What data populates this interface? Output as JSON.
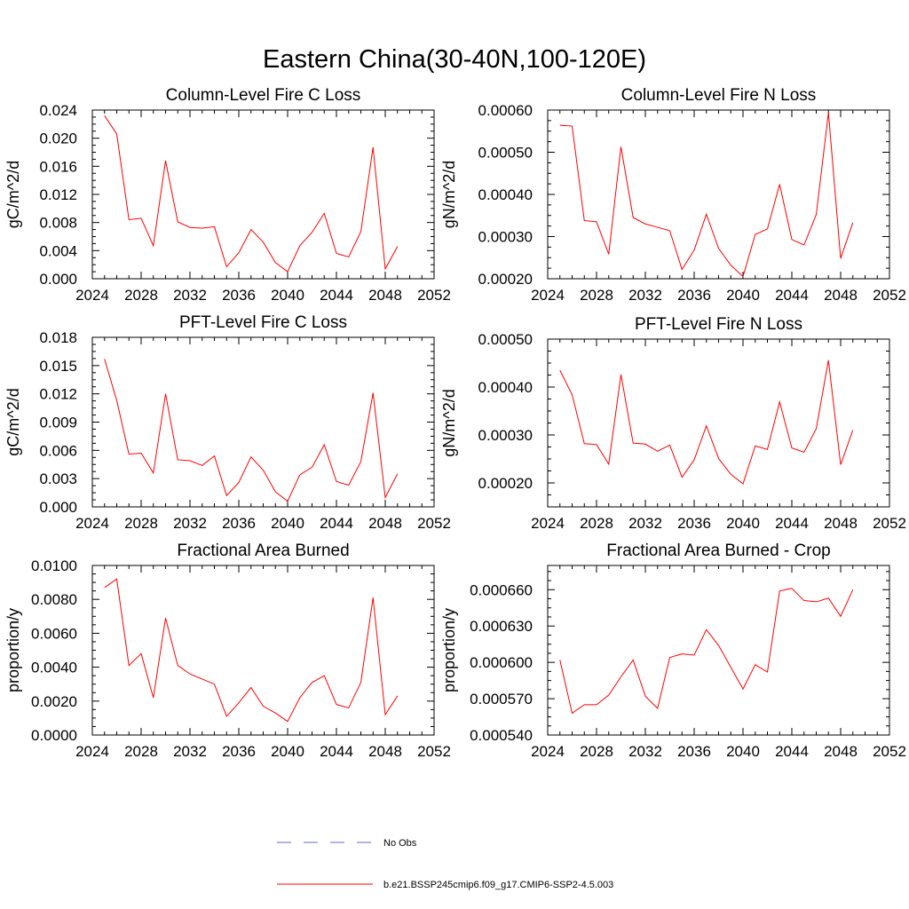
{
  "figure_title": "Eastern China(30-40N,100-120E)",
  "legend": {
    "items": [
      {
        "label": "No Obs",
        "color": "#6666cc",
        "dash": true
      },
      {
        "label": "b.e21.BSSP245cmip6.f09_g17.CMIP6-SSP2-4.5.003",
        "color": "#ff0000",
        "dash": false
      }
    ]
  },
  "colors": {
    "model_line": "#ff0000",
    "obs_line": "#6666cc"
  },
  "chart_data": [
    {
      "type": "line",
      "title": "Column-Level Fire C Loss",
      "ylabel": "gC/m^2/d",
      "xlim": [
        2024,
        2052
      ],
      "ylim": [
        0.0,
        0.024
      ],
      "xticks": [
        "2024",
        "2028",
        "2032",
        "2036",
        "2040",
        "2044",
        "2048",
        "2052"
      ],
      "yticks": [
        "0.000",
        "0.004",
        "0.008",
        "0.012",
        "0.016",
        "0.020",
        "0.024"
      ],
      "x": [
        2025,
        2026,
        2027,
        2028,
        2029,
        2030,
        2031,
        2032,
        2033,
        2034,
        2035,
        2036,
        2037,
        2038,
        2039,
        2040,
        2041,
        2042,
        2043,
        2044,
        2045,
        2046,
        2047,
        2048,
        2049
      ],
      "series": [
        {
          "values": [
            0.0232,
            0.0206,
            0.0084,
            0.0086,
            0.0047,
            0.0168,
            0.0081,
            0.0073,
            0.0072,
            0.0074,
            0.0017,
            0.0037,
            0.007,
            0.0052,
            0.0023,
            0.001,
            0.0047,
            0.0066,
            0.0093,
            0.0036,
            0.0031,
            0.0067,
            0.0187,
            0.0014,
            0.0046
          ]
        }
      ]
    },
    {
      "type": "line",
      "title": "Column-Level Fire N Loss",
      "ylabel": "gN/m^2/d",
      "xlim": [
        2024,
        2052
      ],
      "ylim": [
        0.0002,
        0.0006
      ],
      "xticks": [
        "2024",
        "2028",
        "2032",
        "2036",
        "2040",
        "2044",
        "2048",
        "2052"
      ],
      "yticks": [
        "0.00020",
        "0.00030",
        "0.00040",
        "0.00050",
        "0.00060"
      ],
      "x": [
        2025,
        2026,
        2027,
        2028,
        2029,
        2030,
        2031,
        2032,
        2033,
        2034,
        2035,
        2036,
        2037,
        2038,
        2039,
        2040,
        2041,
        2042,
        2043,
        2044,
        2045,
        2046,
        2047,
        2048,
        2049
      ],
      "series": [
        {
          "values": [
            0.000564,
            0.000562,
            0.000338,
            0.000335,
            0.000258,
            0.000513,
            0.000345,
            0.00033,
            0.000322,
            0.000314,
            0.000222,
            0.000268,
            0.000353,
            0.000272,
            0.000232,
            0.000205,
            0.000305,
            0.000318,
            0.000424,
            0.000293,
            0.00028,
            0.000352,
            0.000594,
            0.000248,
            0.000333
          ]
        }
      ]
    },
    {
      "type": "line",
      "title": "PFT-Level Fire C Loss",
      "ylabel": "gC/m^2/d",
      "xlim": [
        2024,
        2052
      ],
      "ylim": [
        0.0,
        0.018
      ],
      "xticks": [
        "2024",
        "2028",
        "2032",
        "2036",
        "2040",
        "2044",
        "2048",
        "2052"
      ],
      "yticks": [
        "0.000",
        "0.003",
        "0.006",
        "0.009",
        "0.012",
        "0.015",
        "0.018"
      ],
      "x": [
        2025,
        2026,
        2027,
        2028,
        2029,
        2030,
        2031,
        2032,
        2033,
        2034,
        2035,
        2036,
        2037,
        2038,
        2039,
        2040,
        2041,
        2042,
        2043,
        2044,
        2045,
        2046,
        2047,
        2048,
        2049
      ],
      "series": [
        {
          "values": [
            0.0157,
            0.0113,
            0.0056,
            0.0057,
            0.0036,
            0.012,
            0.005,
            0.0049,
            0.0044,
            0.0054,
            0.0012,
            0.0026,
            0.0053,
            0.0039,
            0.0016,
            0.0006,
            0.0034,
            0.0042,
            0.0066,
            0.0027,
            0.0023,
            0.0048,
            0.0121,
            0.001,
            0.0035
          ]
        }
      ]
    },
    {
      "type": "line",
      "title": "PFT-Level Fire N Loss",
      "ylabel": "gN/m^2/d",
      "xlim": [
        2024,
        2052
      ],
      "ylim": [
        0.00015,
        0.0005
      ],
      "xticks": [
        "2024",
        "2028",
        "2032",
        "2036",
        "2040",
        "2044",
        "2048",
        "2052"
      ],
      "yticks": [
        "0.00020",
        "0.00030",
        "0.00040",
        "0.00050"
      ],
      "x": [
        2025,
        2026,
        2027,
        2028,
        2029,
        2030,
        2031,
        2032,
        2033,
        2034,
        2035,
        2036,
        2037,
        2038,
        2039,
        2040,
        2041,
        2042,
        2043,
        2044,
        2045,
        2046,
        2047,
        2048,
        2049
      ],
      "series": [
        {
          "values": [
            0.000435,
            0.000384,
            0.000282,
            0.00028,
            0.000239,
            0.000426,
            0.000283,
            0.000281,
            0.000266,
            0.000279,
            0.000212,
            0.000248,
            0.000319,
            0.000251,
            0.000218,
            0.000198,
            0.000277,
            0.00027,
            0.000369,
            0.000273,
            0.000264,
            0.000313,
            0.000456,
            0.000238,
            0.00031
          ]
        }
      ]
    },
    {
      "type": "line",
      "title": "Fractional Area Burned",
      "ylabel": "proportion/y",
      "xlim": [
        2024,
        2052
      ],
      "ylim": [
        0.0,
        0.01
      ],
      "xticks": [
        "2024",
        "2028",
        "2032",
        "2036",
        "2040",
        "2044",
        "2048",
        "2052"
      ],
      "yticks": [
        "0.0000",
        "0.0020",
        "0.0040",
        "0.0060",
        "0.0080",
        "0.0100"
      ],
      "x": [
        2025,
        2026,
        2027,
        2028,
        2029,
        2030,
        2031,
        2032,
        2033,
        2034,
        2035,
        2036,
        2037,
        2038,
        2039,
        2040,
        2041,
        2042,
        2043,
        2044,
        2045,
        2046,
        2047,
        2048,
        2049
      ],
      "series": [
        {
          "values": [
            0.0087,
            0.0092,
            0.0041,
            0.0048,
            0.0022,
            0.0069,
            0.0041,
            0.0036,
            0.0033,
            0.003,
            0.0011,
            0.0019,
            0.0028,
            0.0017,
            0.0013,
            0.0008,
            0.0022,
            0.0031,
            0.0035,
            0.0018,
            0.0016,
            0.0031,
            0.0081,
            0.0012,
            0.0023
          ]
        }
      ]
    },
    {
      "type": "line",
      "title": "Fractional Area Burned - Crop",
      "ylabel": "proportion/y",
      "xlim": [
        2024,
        2052
      ],
      "ylim": [
        0.00054,
        0.00068
      ],
      "xticks": [
        "2024",
        "2028",
        "2032",
        "2036",
        "2040",
        "2044",
        "2048",
        "2052"
      ],
      "yticks": [
        "0.000540",
        "0.000570",
        "0.000600",
        "0.000630",
        "0.000660"
      ],
      "x": [
        2025,
        2026,
        2027,
        2028,
        2029,
        2030,
        2031,
        2032,
        2033,
        2034,
        2035,
        2036,
        2037,
        2038,
        2039,
        2040,
        2041,
        2042,
        2043,
        2044,
        2045,
        2046,
        2047,
        2048,
        2049
      ],
      "series": [
        {
          "values": [
            0.000602,
            0.000558,
            0.000565,
            0.000565,
            0.000573,
            0.000588,
            0.000602,
            0.000572,
            0.000562,
            0.000604,
            0.000607,
            0.000606,
            0.000627,
            0.000614,
            0.000596,
            0.000578,
            0.000598,
            0.000592,
            0.000659,
            0.000661,
            0.000651,
            0.00065,
            0.000653,
            0.000638,
            0.00066
          ]
        }
      ]
    }
  ]
}
